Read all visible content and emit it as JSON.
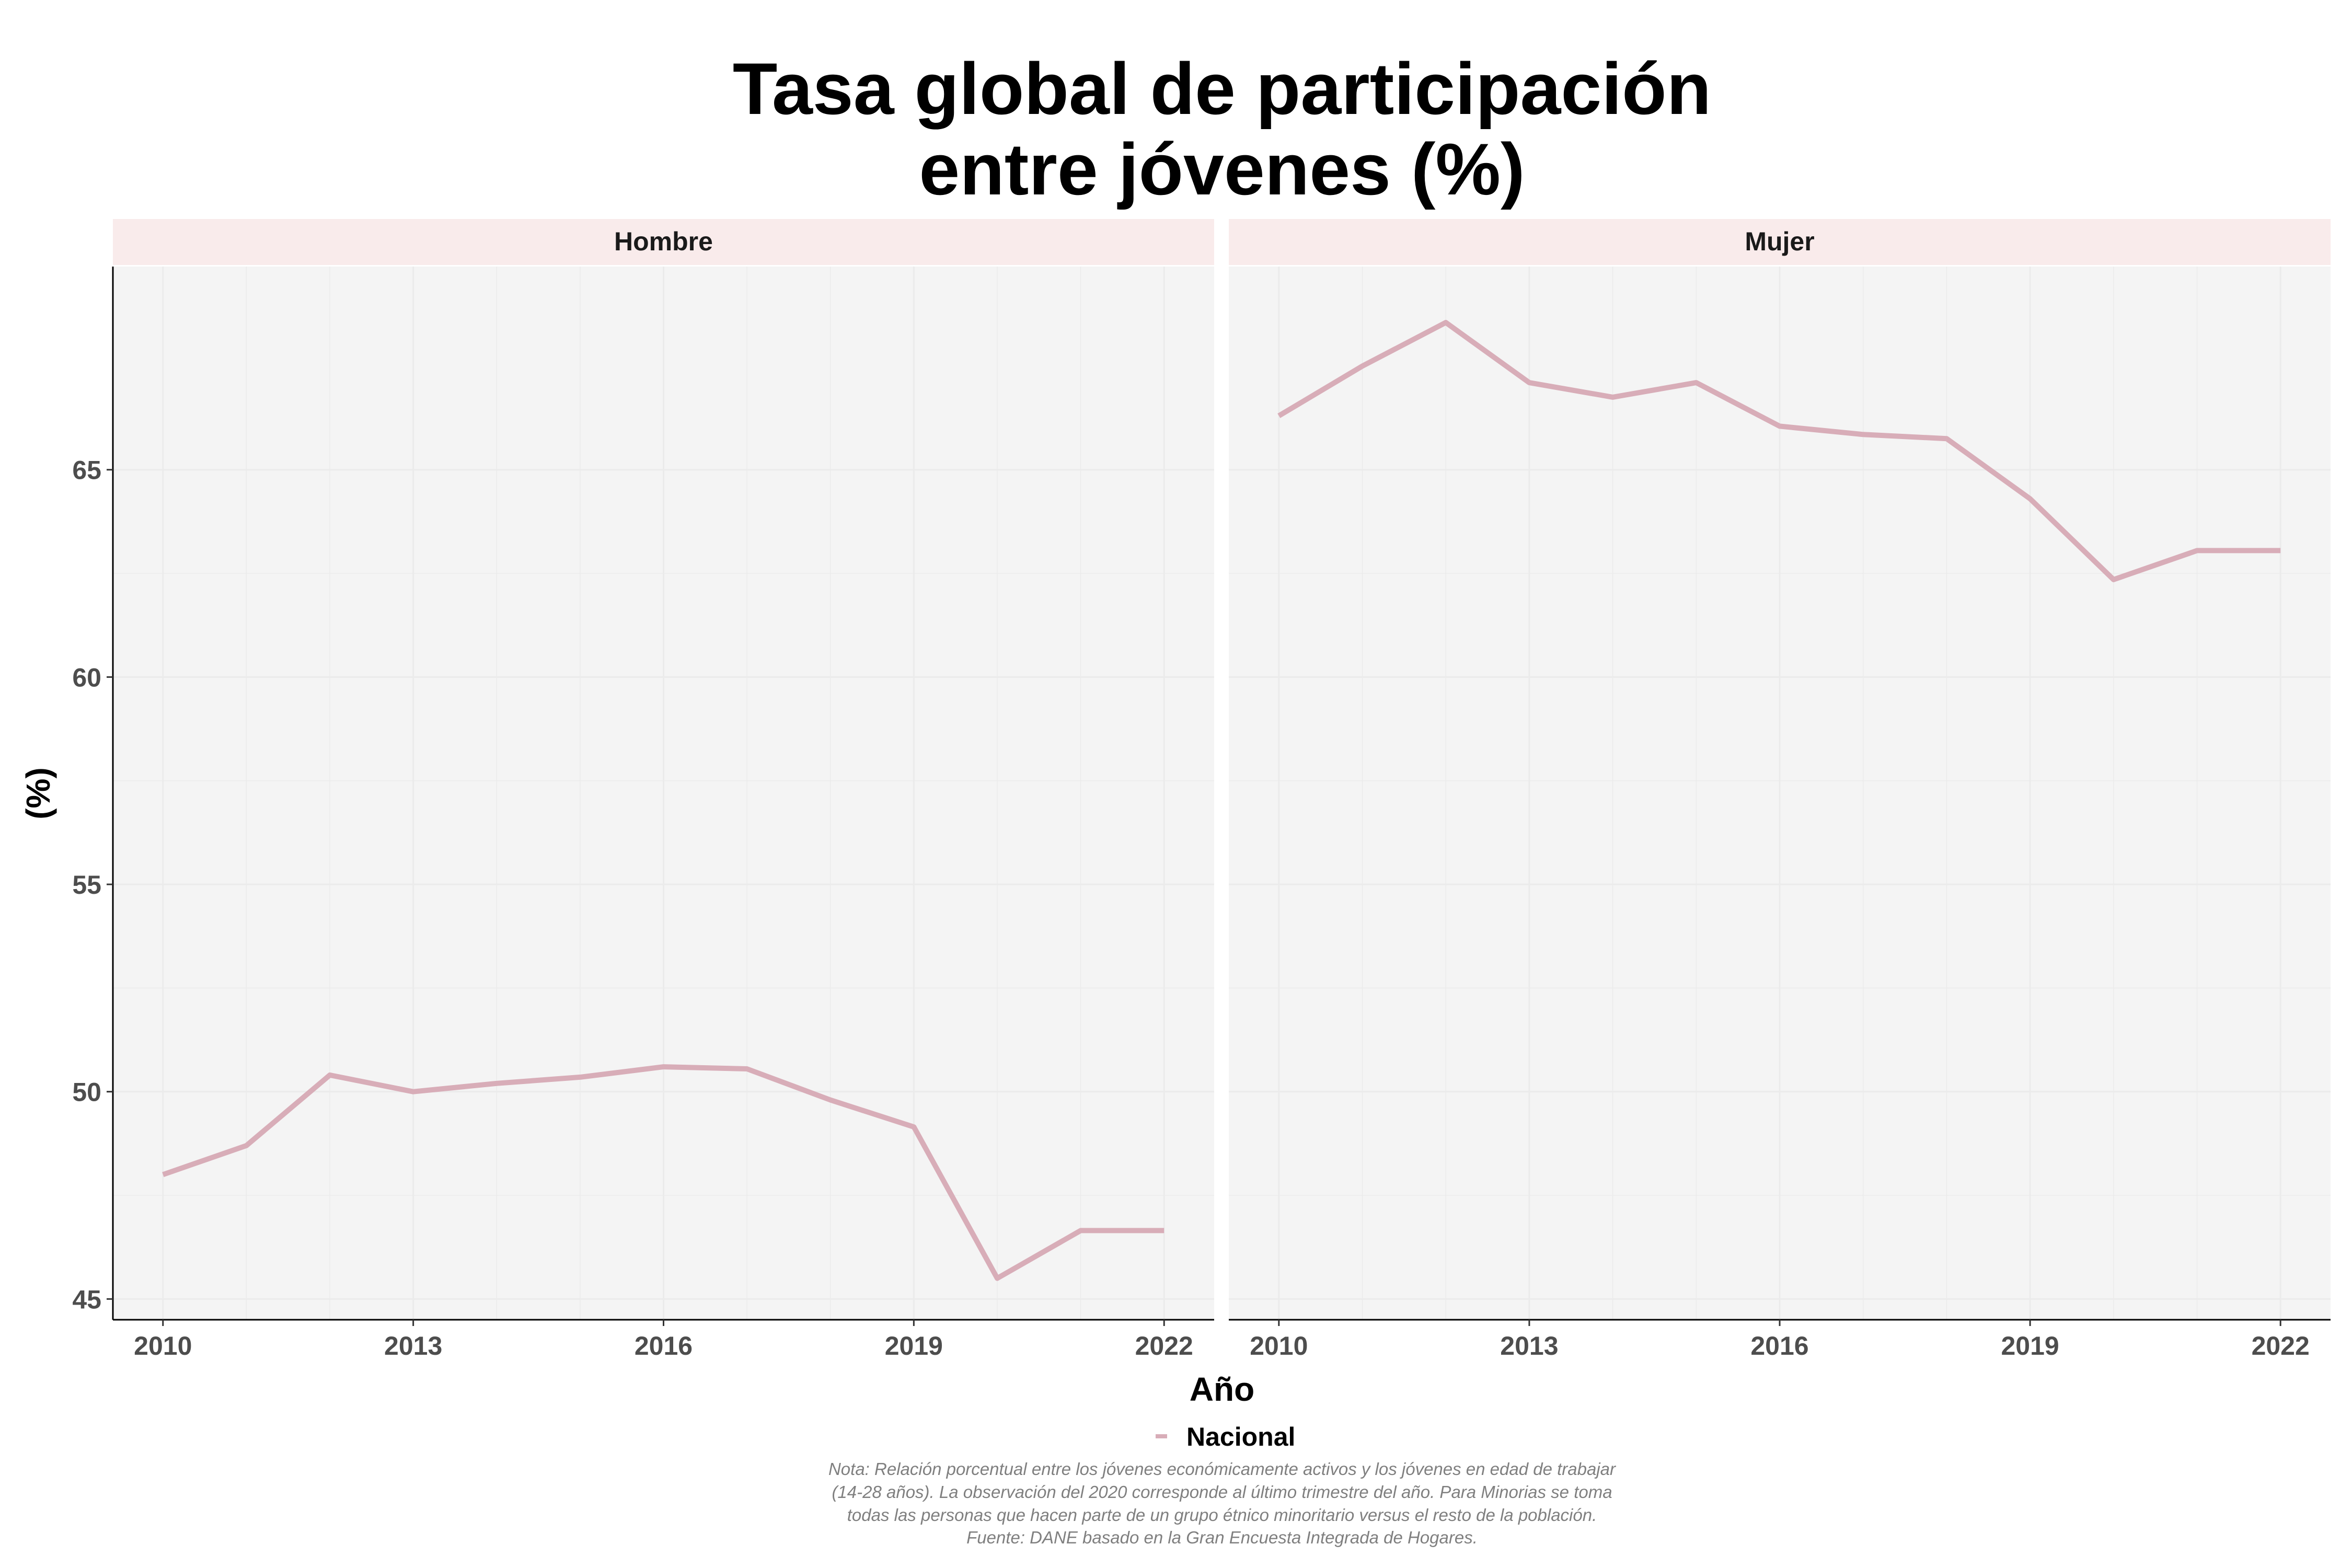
{
  "chart_data": {
    "type": "line",
    "title_lines": [
      "Tasa global de participación",
      "entre jóvenes (%)"
    ],
    "xlabel": "Año",
    "ylabel": "(%)",
    "x": [
      2010,
      2011,
      2012,
      2013,
      2014,
      2015,
      2016,
      2017,
      2018,
      2019,
      2020,
      2021,
      2022
    ],
    "xticks": [
      2010,
      2013,
      2016,
      2019,
      2022
    ],
    "yticks": [
      45,
      50,
      55,
      60,
      65
    ],
    "xlim": [
      2009.4,
      2022.6
    ],
    "ylim": [
      44.5,
      69.9
    ],
    "grid": true,
    "legend_position": "bottom",
    "series_color": "#d8adb8",
    "strip_color": "#f9ebeb",
    "panel_bg": "#f4f4f4",
    "panels": [
      {
        "label": "Hombre",
        "series": [
          {
            "name": "Nacional",
            "values": [
              48.0,
              48.7,
              50.4,
              50.0,
              50.2,
              50.35,
              50.6,
              50.55,
              49.8,
              49.15,
              45.5,
              46.65,
              46.65
            ]
          }
        ]
      },
      {
        "label": "Mujer",
        "series": [
          {
            "name": "Nacional",
            "values": [
              66.3,
              67.5,
              68.55,
              67.1,
              66.75,
              67.1,
              66.05,
              65.85,
              65.75,
              64.3,
              62.35,
              63.05,
              63.05
            ]
          }
        ]
      }
    ],
    "legend": [
      "Nacional"
    ],
    "note_lines": [
      "Nota: Relación porcentual entre los jóvenes económicamente activos y los jóvenes en edad de trabajar",
      "(14-28 años). La observación del 2020 corresponde al último trimestre del año. Para Minorias se toma",
      "todas las personas que hacen parte de un grupo étnico minoritario versus el resto de la población.",
      "Fuente: DANE basado en la Gran Encuesta Integrada de Hogares."
    ]
  }
}
